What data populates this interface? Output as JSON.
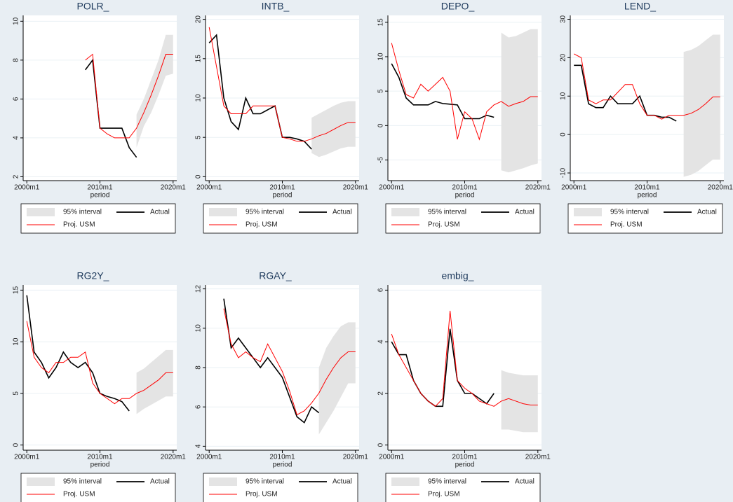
{
  "chart_data": [
    {
      "type": "line",
      "title": "POLR_",
      "xlabel": "period",
      "x": [
        "2000m1",
        "2001m1",
        "2002m1",
        "2003m1",
        "2004m1",
        "2005m1",
        "2006m1",
        "2007m1",
        "2008m1",
        "2009m1",
        "2010m1",
        "2011m1",
        "2012m1",
        "2013m1",
        "2014m1",
        "2015m1",
        "2016m1",
        "2017m1",
        "2018m1",
        "2019m1",
        "2020m1"
      ],
      "xlim": [
        "1999m7",
        "2020m7"
      ],
      "xticks": [
        "2000m1",
        "2010m1",
        "2020m1"
      ],
      "ylim": [
        1.8,
        10.3
      ],
      "yticks": [
        2,
        4,
        6,
        8,
        10
      ],
      "grid": true,
      "series": [
        {
          "name": "95% interval",
          "color": "#e4e4e4",
          "lower": [
            null,
            null,
            null,
            null,
            null,
            null,
            null,
            null,
            null,
            null,
            null,
            null,
            null,
            null,
            null,
            3.5,
            4.6,
            5.3,
            6.2,
            7.2,
            7.3
          ],
          "upper": [
            null,
            null,
            null,
            null,
            null,
            null,
            null,
            null,
            null,
            null,
            null,
            null,
            null,
            null,
            null,
            5.2,
            6,
            7,
            8,
            9.3,
            9.3
          ]
        },
        {
          "name": "Actual",
          "color": "#000000",
          "values": [
            null,
            null,
            null,
            null,
            null,
            null,
            null,
            null,
            7.5,
            8,
            4.5,
            4.5,
            4.5,
            4.5,
            3.5,
            3,
            null,
            null,
            null,
            null,
            null
          ]
        },
        {
          "name": "Proj. USM",
          "color": "#ff0000",
          "values": [
            null,
            null,
            null,
            null,
            null,
            null,
            null,
            null,
            8,
            8.3,
            4.5,
            4.2,
            4,
            4,
            4,
            4.5,
            5.3,
            6.2,
            7.2,
            8.3,
            8.3
          ]
        }
      ]
    },
    {
      "type": "line",
      "title": "INTB_",
      "xlabel": "period",
      "x": [
        "2000m1",
        "2001m1",
        "2002m1",
        "2003m1",
        "2004m1",
        "2005m1",
        "2006m1",
        "2007m1",
        "2008m1",
        "2009m1",
        "2010m1",
        "2011m1",
        "2012m1",
        "2013m1",
        "2014m1",
        "2015m1",
        "2016m1",
        "2017m1",
        "2018m1",
        "2019m1",
        "2020m1"
      ],
      "xlim": [
        "1999m7",
        "2020m7"
      ],
      "xticks": [
        "2000m1",
        "2010m1",
        "2020m1"
      ],
      "ylim": [
        -0.5,
        20.5
      ],
      "yticks": [
        0,
        5,
        10,
        15,
        20
      ],
      "grid": true,
      "series": [
        {
          "name": "95% interval",
          "color": "#e4e4e4",
          "lower": [
            null,
            null,
            null,
            null,
            null,
            null,
            null,
            null,
            null,
            null,
            null,
            null,
            null,
            null,
            3,
            2.5,
            2.8,
            3.2,
            3.6,
            3.8,
            3.8
          ],
          "upper": [
            null,
            null,
            null,
            null,
            null,
            null,
            null,
            null,
            null,
            null,
            null,
            null,
            null,
            null,
            7.5,
            8,
            8.5,
            9,
            9.4,
            9.6,
            9.6
          ]
        },
        {
          "name": "Actual",
          "color": "#000000",
          "values": [
            17,
            18,
            10,
            7,
            6,
            10,
            8,
            8,
            8.5,
            9,
            5,
            5,
            4.8,
            4.5,
            3.5,
            null,
            null,
            null,
            null,
            null,
            null
          ]
        },
        {
          "name": "Proj. USM",
          "color": "#ff0000",
          "values": [
            19,
            14,
            9,
            8,
            8,
            8,
            9,
            9,
            9,
            9,
            5,
            4.8,
            4.5,
            4.5,
            4.8,
            5.2,
            5.5,
            6,
            6.5,
            6.9,
            6.9
          ]
        }
      ]
    },
    {
      "type": "line",
      "title": "DEPO_",
      "xlabel": "period",
      "x": [
        "2000m1",
        "2001m1",
        "2002m1",
        "2003m1",
        "2004m1",
        "2005m1",
        "2006m1",
        "2007m1",
        "2008m1",
        "2009m1",
        "2010m1",
        "2011m1",
        "2012m1",
        "2013m1",
        "2014m1",
        "2015m1",
        "2016m1",
        "2017m1",
        "2018m1",
        "2019m1",
        "2020m1"
      ],
      "xlim": [
        "1999m7",
        "2020m7"
      ],
      "xticks": [
        "2000m1",
        "2010m1",
        "2020m1"
      ],
      "ylim": [
        -8,
        16
      ],
      "yticks": [
        -5,
        0,
        5,
        10,
        15
      ],
      "grid": true,
      "series": [
        {
          "name": "95% interval",
          "color": "#e4e4e4",
          "lower": [
            null,
            null,
            null,
            null,
            null,
            null,
            null,
            null,
            null,
            null,
            null,
            null,
            null,
            null,
            null,
            -6.5,
            -6.8,
            -6.5,
            -6.2,
            -5.8,
            -5.5
          ],
          "upper": [
            null,
            null,
            null,
            null,
            null,
            null,
            null,
            null,
            null,
            null,
            null,
            null,
            null,
            null,
            null,
            13.5,
            12.8,
            13,
            13.5,
            14,
            14
          ]
        },
        {
          "name": "Actual",
          "color": "#000000",
          "values": [
            9,
            7,
            4,
            3,
            3,
            3,
            3.5,
            3.2,
            3.1,
            3,
            1,
            1,
            1,
            1.5,
            1.2,
            null,
            null,
            null,
            null,
            null,
            null
          ]
        },
        {
          "name": "Proj. USM",
          "color": "#ff0000",
          "values": [
            12,
            8,
            4.5,
            4,
            6,
            5,
            6,
            7,
            5,
            -2,
            2,
            1,
            -2,
            2,
            3,
            3.5,
            2.8,
            3.2,
            3.5,
            4.2,
            4.2
          ]
        }
      ]
    },
    {
      "type": "line",
      "title": "LEND_",
      "xlabel": "period",
      "x": [
        "2000m1",
        "2001m1",
        "2002m1",
        "2003m1",
        "2004m1",
        "2005m1",
        "2006m1",
        "2007m1",
        "2008m1",
        "2009m1",
        "2010m1",
        "2011m1",
        "2012m1",
        "2013m1",
        "2014m1",
        "2015m1",
        "2016m1",
        "2017m1",
        "2018m1",
        "2019m1",
        "2020m1"
      ],
      "xlim": [
        "1999m7",
        "2020m7"
      ],
      "xticks": [
        "2000m1",
        "2010m1",
        "2020m1"
      ],
      "ylim": [
        -12,
        31
      ],
      "yticks": [
        -10,
        0,
        10,
        20,
        30
      ],
      "grid": true,
      "series": [
        {
          "name": "95% interval",
          "color": "#e4e4e4",
          "lower": [
            null,
            null,
            null,
            null,
            null,
            null,
            null,
            null,
            null,
            null,
            null,
            null,
            null,
            null,
            null,
            -11,
            -10.5,
            -9.5,
            -8,
            -6.5,
            -6.5
          ],
          "upper": [
            null,
            null,
            null,
            null,
            null,
            null,
            null,
            null,
            null,
            null,
            null,
            null,
            null,
            null,
            null,
            21.5,
            22,
            23,
            24.5,
            26,
            26
          ]
        },
        {
          "name": "Actual",
          "color": "#000000",
          "values": [
            18,
            18,
            8,
            7,
            7,
            10,
            8,
            8,
            8,
            10,
            5,
            5,
            4.5,
            4.5,
            3.5,
            null,
            null,
            null,
            null,
            null,
            null
          ]
        },
        {
          "name": "Proj. USM",
          "color": "#ff0000",
          "values": [
            21,
            20,
            9,
            8,
            9,
            9,
            11,
            13,
            13,
            8,
            5,
            5,
            4,
            5,
            5,
            5,
            5.5,
            6.5,
            8,
            9.8,
            9.8
          ]
        }
      ]
    },
    {
      "type": "line",
      "title": "RG2Y_",
      "xlabel": "period",
      "x": [
        "2000m1",
        "2001m1",
        "2002m1",
        "2003m1",
        "2004m1",
        "2005m1",
        "2006m1",
        "2007m1",
        "2008m1",
        "2009m1",
        "2010m1",
        "2011m1",
        "2012m1",
        "2013m1",
        "2014m1",
        "2015m1",
        "2016m1",
        "2017m1",
        "2018m1",
        "2019m1",
        "2020m1"
      ],
      "xlim": [
        "1999m7",
        "2020m7"
      ],
      "xticks": [
        "2000m1",
        "2010m1",
        "2020m1"
      ],
      "ylim": [
        -0.5,
        15.5
      ],
      "yticks": [
        0,
        5,
        10,
        15
      ],
      "grid": true,
      "series": [
        {
          "name": "95% interval",
          "color": "#e4e4e4",
          "lower": [
            null,
            null,
            null,
            null,
            null,
            null,
            null,
            null,
            null,
            null,
            null,
            null,
            null,
            null,
            null,
            3,
            3.5,
            3.9,
            4.3,
            4.7,
            4.7
          ],
          "upper": [
            null,
            null,
            null,
            null,
            null,
            null,
            null,
            null,
            null,
            null,
            null,
            null,
            null,
            null,
            null,
            7,
            7.4,
            8,
            8.6,
            9.2,
            9.2
          ]
        },
        {
          "name": "Actual",
          "color": "#000000",
          "values": [
            14.5,
            9,
            8,
            6.5,
            7.5,
            9,
            8,
            7.5,
            8,
            7,
            5,
            4.7,
            4.5,
            4.2,
            3.3,
            null,
            null,
            null,
            null,
            null,
            null
          ]
        },
        {
          "name": "Proj. USM",
          "color": "#ff0000",
          "values": [
            12,
            8.5,
            7.5,
            7,
            8,
            8,
            8.5,
            8.5,
            9,
            6,
            5,
            4.5,
            4,
            4.5,
            4.5,
            5,
            5.3,
            5.8,
            6.3,
            7,
            7
          ]
        }
      ]
    },
    {
      "type": "line",
      "title": "RGAY_",
      "xlabel": "period",
      "x": [
        "2000m1",
        "2001m1",
        "2002m1",
        "2003m1",
        "2004m1",
        "2005m1",
        "2006m1",
        "2007m1",
        "2008m1",
        "2009m1",
        "2010m1",
        "2011m1",
        "2012m1",
        "2013m1",
        "2014m1",
        "2015m1",
        "2016m1",
        "2017m1",
        "2018m1",
        "2019m1",
        "2020m1"
      ],
      "xlim": [
        "1999m7",
        "2020m7"
      ],
      "xticks": [
        "2000m1",
        "2010m1",
        "2020m1"
      ],
      "ylim": [
        3.8,
        12.2
      ],
      "yticks": [
        4,
        6,
        8,
        10,
        12
      ],
      "grid": true,
      "series": [
        {
          "name": "95% interval",
          "color": "#e4e4e4",
          "lower": [
            null,
            null,
            null,
            null,
            null,
            null,
            null,
            null,
            null,
            null,
            null,
            null,
            null,
            null,
            null,
            4.6,
            5.2,
            5.8,
            6.5,
            7.2,
            7.2
          ],
          "upper": [
            null,
            null,
            null,
            null,
            null,
            null,
            null,
            null,
            null,
            null,
            null,
            null,
            null,
            null,
            null,
            8,
            9,
            9.6,
            10.1,
            10.3,
            10.3
          ]
        },
        {
          "name": "Actual",
          "color": "#000000",
          "values": [
            null,
            null,
            11.5,
            9,
            9.5,
            9,
            8.5,
            8,
            8.5,
            8,
            7.5,
            6.5,
            5.5,
            5.2,
            6,
            5.7,
            null,
            null,
            null,
            null,
            null
          ]
        },
        {
          "name": "Proj. USM",
          "color": "#ff0000",
          "values": [
            null,
            null,
            11,
            9.2,
            8.5,
            8.8,
            8.5,
            8.3,
            9.2,
            8.5,
            7.8,
            6.8,
            5.6,
            5.8,
            6.2,
            6.7,
            7.4,
            8,
            8.5,
            8.8,
            8.8
          ]
        }
      ]
    },
    {
      "type": "line",
      "title": "embig_",
      "xlabel": "period",
      "x": [
        "2000m1",
        "2001m1",
        "2002m1",
        "2003m1",
        "2004m1",
        "2005m1",
        "2006m1",
        "2007m1",
        "2008m1",
        "2009m1",
        "2010m1",
        "2011m1",
        "2012m1",
        "2013m1",
        "2014m1",
        "2015m1",
        "2016m1",
        "2017m1",
        "2018m1",
        "2019m1",
        "2020m1"
      ],
      "xlim": [
        "1999m7",
        "2020m7"
      ],
      "xticks": [
        "2000m1",
        "2010m1",
        "2020m1"
      ],
      "ylim": [
        -0.2,
        6.2
      ],
      "yticks": [
        0,
        2,
        4,
        6
      ],
      "grid": true,
      "series": [
        {
          "name": "95% interval",
          "color": "#e4e4e4",
          "lower": [
            null,
            null,
            null,
            null,
            null,
            null,
            null,
            null,
            null,
            null,
            null,
            null,
            null,
            null,
            null,
            0.6,
            0.6,
            0.55,
            0.5,
            0.5,
            0.5
          ],
          "upper": [
            null,
            null,
            null,
            null,
            null,
            null,
            null,
            null,
            null,
            null,
            null,
            null,
            null,
            null,
            null,
            2.9,
            2.8,
            2.75,
            2.7,
            2.7,
            2.7
          ]
        },
        {
          "name": "Actual",
          "color": "#000000",
          "values": [
            4,
            3.5,
            3.5,
            2.5,
            2,
            1.7,
            1.5,
            1.5,
            4.5,
            2.5,
            2,
            2,
            1.8,
            1.6,
            2,
            null,
            null,
            null,
            null,
            null,
            null
          ]
        },
        {
          "name": "Proj. USM",
          "color": "#ff0000",
          "values": [
            4.3,
            3.5,
            3,
            2.5,
            2,
            1.7,
            1.5,
            1.8,
            5.2,
            2.5,
            2.2,
            2,
            1.7,
            1.6,
            1.5,
            1.7,
            1.8,
            1.7,
            1.6,
            1.55,
            1.55
          ]
        }
      ]
    }
  ]
}
